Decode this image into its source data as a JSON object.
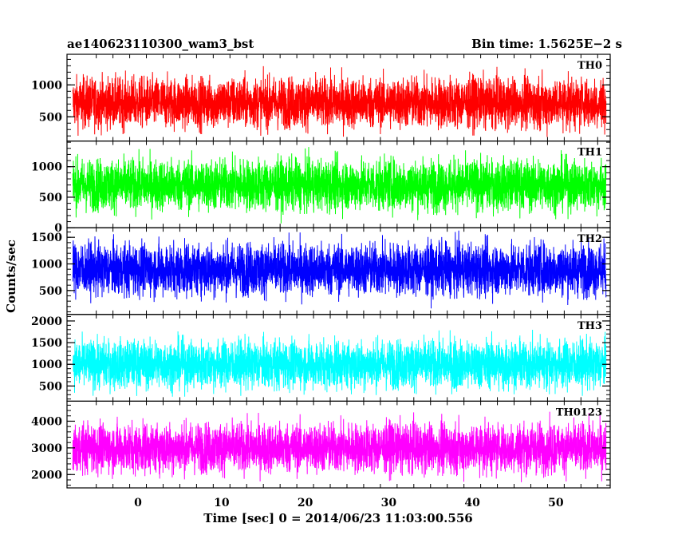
{
  "chart_data": {
    "type": "line",
    "title_left": "ae140623110300_wam3_bst",
    "title_right": "Bin time: 1.5625E−2 s",
    "xlabel": "Time [sec] 0 = 2014/06/23 11:03:00.556",
    "ylabel": "Counts/sec",
    "xlim": [
      -8.5,
      56.5
    ],
    "x_data_range": [
      -7.8,
      56
    ],
    "x_ticks": [
      0,
      10,
      20,
      30,
      40,
      50
    ],
    "x_tick_labels": [
      "0",
      "10",
      "20",
      "30",
      "40",
      "50"
    ],
    "grid": false,
    "legend": "none",
    "panels": [
      {
        "name": "TH0",
        "color": "#ff0000",
        "ylim": [
          120,
          1480
        ],
        "y_ticks": [
          500,
          1000
        ],
        "y_tick_labels": [
          "500",
          "1000"
        ],
        "mean": 720,
        "approx_min": 180,
        "approx_max": 1450
      },
      {
        "name": "TH1",
        "color": "#00ff00",
        "ylim": [
          0,
          1420
        ],
        "y_ticks": [
          0,
          500,
          1000
        ],
        "y_tick_labels": [
          "0",
          "500",
          "1000"
        ],
        "mean": 700,
        "approx_min": 50,
        "approx_max": 1400
      },
      {
        "name": "TH2",
        "color": "#0000ff",
        "ylim": [
          50,
          1680
        ],
        "y_ticks": [
          500,
          1000,
          1500
        ],
        "y_tick_labels": [
          "500",
          "1000",
          "1500"
        ],
        "mean": 900,
        "approx_min": 100,
        "approx_max": 1680
      },
      {
        "name": "TH3",
        "color": "#00ffff",
        "ylim": [
          150,
          2150
        ],
        "y_ticks": [
          500,
          1000,
          1500,
          2000
        ],
        "y_tick_labels": [
          "500",
          "1000",
          "1500",
          "2000"
        ],
        "mean": 1000,
        "approx_min": 250,
        "approx_max": 2050
      },
      {
        "name": "TH0123",
        "color": "#ff00ff",
        "ylim": [
          1500,
          4750
        ],
        "y_ticks": [
          2000,
          3000,
          4000
        ],
        "y_tick_labels": [
          "2000",
          "3000",
          "4000"
        ],
        "mean": 3000,
        "approx_min": 1700,
        "approx_max": 4700
      }
    ]
  }
}
